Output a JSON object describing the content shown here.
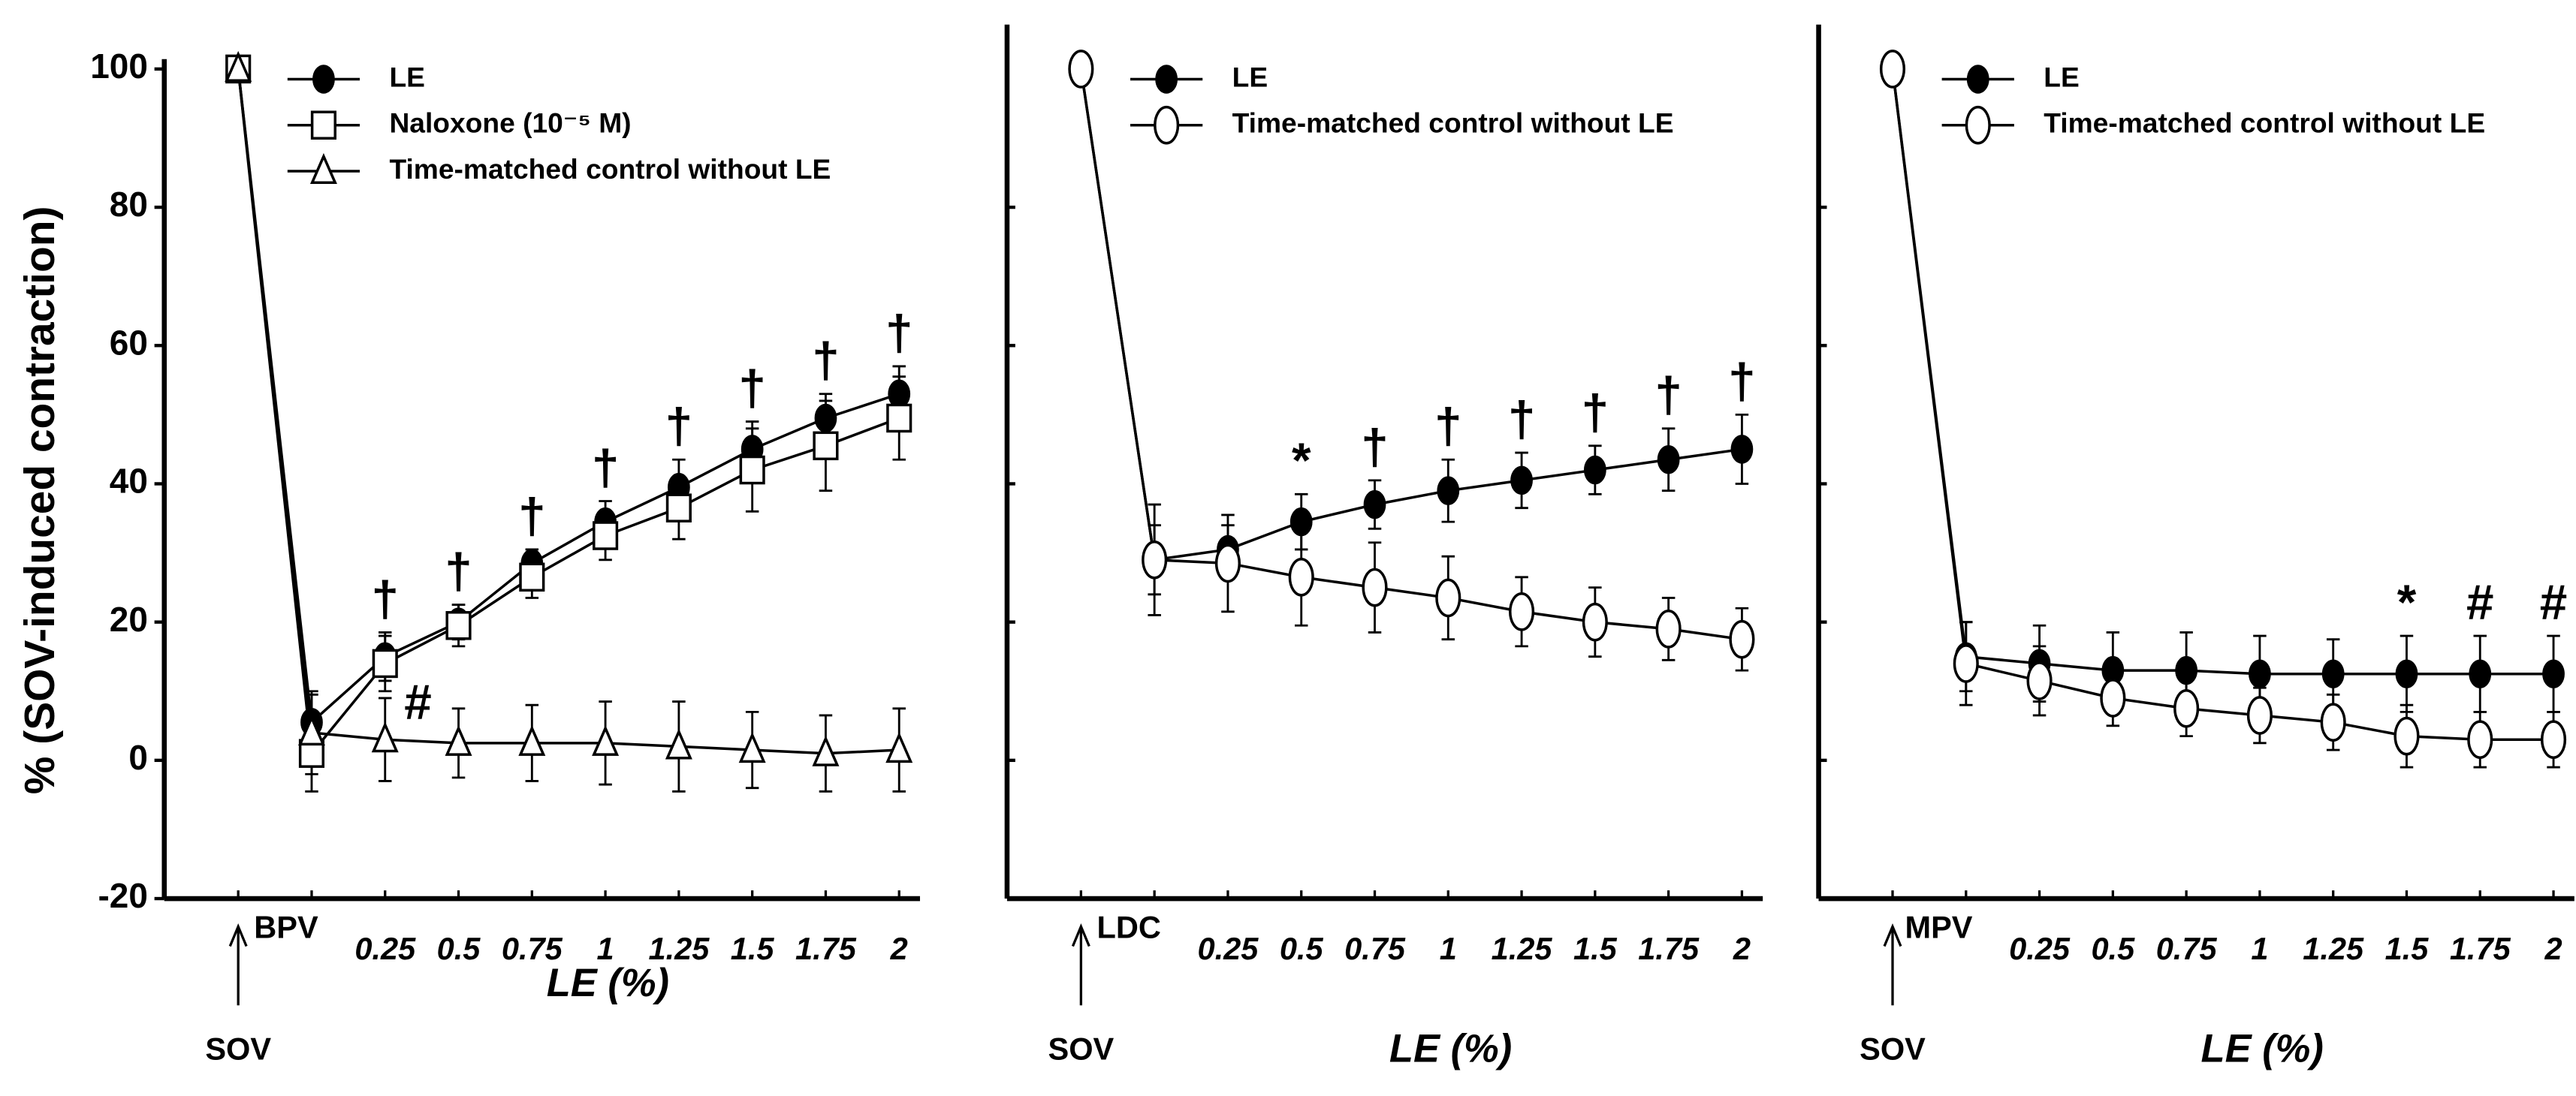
{
  "chart_data": [
    {
      "type": "line",
      "ylabel": "% (SOV-induced contraction)",
      "xlabel": "LE (%)",
      "categories": [
        "SOV",
        "BPV",
        "0.25",
        "0.5",
        "0.75",
        "1",
        "1.25",
        "1.5",
        "1.75",
        "2"
      ],
      "ylim": [
        -20,
        100
      ],
      "yticks": [
        -20,
        0,
        20,
        40,
        60,
        80,
        100
      ],
      "ytick_labels": true,
      "legend": "top-left",
      "series": [
        {
          "name": "LE",
          "color": "#000000",
          "marker": "circle-filled",
          "values": [
            100,
            5.5,
            15,
            20,
            28.5,
            34.5,
            39.5,
            45,
            49.5,
            53
          ],
          "errors": [
            null,
            4,
            3.5,
            2.5,
            2,
            3,
            4,
            4,
            3.5,
            4
          ]
        },
        {
          "name": "Naloxone (10⁻⁵ M)",
          "color": "#000000",
          "marker": "square-open",
          "values": [
            100,
            1,
            14,
            19.5,
            26.5,
            32.5,
            36.5,
            42,
            45.5,
            49.5
          ],
          "errors": [
            null,
            5.5,
            4,
            3,
            3,
            3.5,
            4.5,
            6,
            6.5,
            6
          ]
        },
        {
          "name": "Time-matched control without LE",
          "color": "#000000",
          "marker": "triangle-open",
          "values": [
            100,
            4,
            3,
            2.5,
            2.5,
            2.5,
            2,
            1.5,
            1,
            1.5
          ],
          "errors": [
            null,
            6,
            6,
            5,
            5.5,
            6,
            6.5,
            5.5,
            5.5,
            6
          ]
        }
      ],
      "annotations": [
        {
          "text": "†",
          "category": "0.25"
        },
        {
          "text": "#",
          "category": "0.25"
        },
        {
          "text": "†",
          "category": "0.5"
        },
        {
          "text": "†",
          "category": "0.75"
        },
        {
          "text": "†",
          "category": "1"
        },
        {
          "text": "†",
          "category": "1.25"
        },
        {
          "text": "†",
          "category": "1.5"
        },
        {
          "text": "†",
          "category": "1.75"
        },
        {
          "text": "†",
          "category": "2"
        }
      ]
    },
    {
      "type": "line",
      "xlabel": "LE (%)",
      "categories": [
        "SOV",
        "LDC",
        "0.25",
        "0.5",
        "0.75",
        "1",
        "1.25",
        "1.5",
        "1.75",
        "2"
      ],
      "ylim": [
        -20,
        105
      ],
      "yticks": [
        -20,
        0,
        20,
        40,
        60,
        80
      ],
      "ytick_labels": false,
      "legend": "top-left",
      "series": [
        {
          "name": "LE",
          "color": "#000000",
          "marker": "circle-filled",
          "values": [
            100,
            29,
            30.5,
            34.5,
            37,
            39,
            40.5,
            42,
            43.5,
            45
          ],
          "errors": [
            null,
            5,
            3.5,
            4,
            3.5,
            4.5,
            4,
            3.5,
            4.5,
            5
          ]
        },
        {
          "name": "Time-matched  control without LE",
          "color": "#000000",
          "marker": "circle-open",
          "values": [
            100,
            29,
            28.5,
            26.5,
            25,
            23.5,
            21.5,
            20,
            19,
            17.5
          ],
          "errors": [
            null,
            8,
            7,
            7,
            6.5,
            6,
            5,
            5,
            4.5,
            4.5
          ]
        }
      ],
      "annotations": [
        {
          "text": "*",
          "category": "0.5"
        },
        {
          "text": "†",
          "category": "0.75"
        },
        {
          "text": "†",
          "category": "1"
        },
        {
          "text": "†",
          "category": "1.25"
        },
        {
          "text": "†",
          "category": "1.5"
        },
        {
          "text": "†",
          "category": "1.75"
        },
        {
          "text": "†",
          "category": "2"
        }
      ]
    },
    {
      "type": "line",
      "xlabel": "LE (%)",
      "categories": [
        "SOV",
        "MPV",
        "0.25",
        "0.5",
        "0.75",
        "1",
        "1.25",
        "1.5",
        "1.75",
        "2"
      ],
      "ylim": [
        -20,
        105
      ],
      "yticks": [
        -20,
        0,
        20,
        40,
        60,
        80
      ],
      "ytick_labels": false,
      "legend": "top-left",
      "series": [
        {
          "name": "LE",
          "color": "#000000",
          "marker": "circle-filled",
          "values": [
            100,
            15,
            14,
            13,
            13,
            12.5,
            12.5,
            12.5,
            12.5,
            12.5
          ],
          "errors": [
            null,
            5,
            5.5,
            5.5,
            5.5,
            5.5,
            5,
            5.5,
            5.5,
            5.5
          ]
        },
        {
          "name": "Time-matched  control without LE",
          "color": "#000000",
          "marker": "circle-open",
          "values": [
            100,
            14,
            11.5,
            9,
            7.5,
            6.5,
            5.5,
            3.5,
            3,
            3
          ],
          "errors": [
            null,
            6,
            5,
            4,
            4,
            4,
            4,
            4.5,
            4,
            4
          ]
        }
      ],
      "annotations": [
        {
          "text": "*",
          "category": "1.5"
        },
        {
          "text": "#",
          "category": "1.75"
        },
        {
          "text": "#",
          "category": "2"
        }
      ]
    }
  ]
}
